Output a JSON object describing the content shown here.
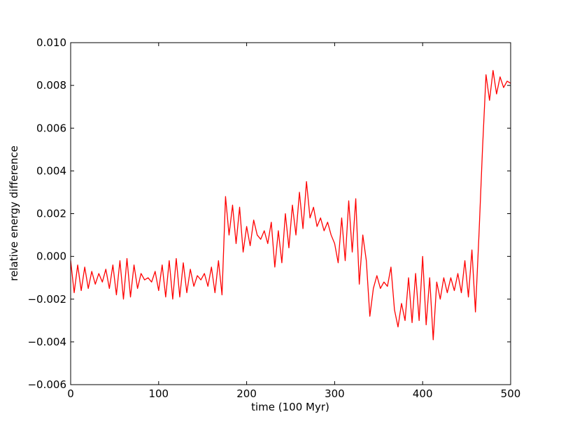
{
  "chart_data": {
    "type": "line",
    "x_label": "time (100 Myr)",
    "y_label": "relative energy difference",
    "xlim": [
      0,
      500
    ],
    "xticks": [
      0,
      100,
      200,
      300,
      400,
      500
    ],
    "ylim": [
      -0.006,
      0.01
    ],
    "yticks": [
      {
        "value": -0.006,
        "label": "−0.006"
      },
      {
        "value": -0.004,
        "label": "−0.004"
      },
      {
        "value": -0.002,
        "label": "−0.002"
      },
      {
        "value": 0,
        "label": "0.000"
      },
      {
        "value": 0.002,
        "label": "0.002"
      },
      {
        "value": 0.004,
        "label": "0.004"
      },
      {
        "value": 0.006,
        "label": "0.006"
      },
      {
        "value": 0.008,
        "label": "0.008"
      },
      {
        "value": 0.01,
        "label": "0.010"
      }
    ],
    "series": [
      {
        "color": "#ff0000",
        "x": [
          0,
          4,
          8,
          12,
          16,
          20,
          24,
          28,
          32,
          36,
          40,
          44,
          48,
          52,
          56,
          60,
          64,
          68,
          72,
          76,
          80,
          84,
          88,
          92,
          96,
          100,
          104,
          108,
          112,
          116,
          120,
          124,
          128,
          132,
          136,
          140,
          144,
          148,
          152,
          156,
          160,
          164,
          168,
          172,
          176,
          180,
          184,
          188,
          192,
          196,
          200,
          204,
          208,
          212,
          216,
          220,
          224,
          228,
          232,
          236,
          240,
          244,
          248,
          252,
          256,
          260,
          264,
          268,
          272,
          276,
          280,
          284,
          288,
          292,
          296,
          300,
          304,
          308,
          312,
          316,
          320,
          324,
          328,
          332,
          336,
          340,
          344,
          348,
          352,
          356,
          360,
          364,
          368,
          372,
          376,
          380,
          384,
          388,
          392,
          396,
          400,
          404,
          408,
          412,
          416,
          420,
          424,
          428,
          432,
          436,
          440,
          444,
          448,
          452,
          456,
          460,
          464,
          468,
          472,
          476,
          480,
          484,
          488,
          492,
          496,
          500
        ],
        "values": [
          -0.0002,
          -0.0017,
          -0.0004,
          -0.0016,
          -0.0005,
          -0.0015,
          -0.0007,
          -0.0013,
          -0.0008,
          -0.0012,
          -0.0006,
          -0.0015,
          -0.0004,
          -0.0018,
          -0.0002,
          -0.002,
          -0.0001,
          -0.0019,
          -0.0004,
          -0.0015,
          -0.0008,
          -0.0011,
          -0.001,
          -0.0012,
          -0.0007,
          -0.0016,
          -0.0004,
          -0.0019,
          -0.0002,
          -0.002,
          -0.0001,
          -0.0019,
          -0.0003,
          -0.0017,
          -0.0006,
          -0.0014,
          -0.0009,
          -0.0011,
          -0.0008,
          -0.0014,
          -0.0005,
          -0.0017,
          -0.0002,
          -0.0018,
          0.0028,
          0.001,
          0.0024,
          0.0006,
          0.0023,
          0.0002,
          0.0014,
          0.0005,
          0.0017,
          0.001,
          0.0008,
          0.0012,
          0.0006,
          0.0016,
          -0.0005,
          0.0012,
          -0.0003,
          0.002,
          0.0004,
          0.0024,
          0.001,
          0.003,
          0.0013,
          0.0035,
          0.0018,
          0.0023,
          0.0014,
          0.0018,
          0.0012,
          0.0016,
          0.001,
          0.0006,
          -0.0003,
          0.0018,
          -0.0002,
          0.0026,
          0.0002,
          0.0027,
          -0.0013,
          0.001,
          -0.0002,
          -0.0028,
          -0.0015,
          -0.0009,
          -0.0015,
          -0.0012,
          -0.0014,
          -0.0005,
          -0.0025,
          -0.0033,
          -0.0022,
          -0.003,
          -0.001,
          -0.0031,
          -0.0008,
          -0.003,
          0.0,
          -0.0032,
          -0.001,
          -0.0039,
          -0.0012,
          -0.002,
          -0.001,
          -0.0017,
          -0.001,
          -0.0016,
          -0.0008,
          -0.0017,
          -0.0002,
          -0.0019,
          0.0003,
          -0.0026,
          0.001,
          0.005,
          0.0085,
          0.0073,
          0.0087,
          0.0076,
          0.0084,
          0.0079,
          0.0082,
          0.0081
        ]
      }
    ]
  }
}
